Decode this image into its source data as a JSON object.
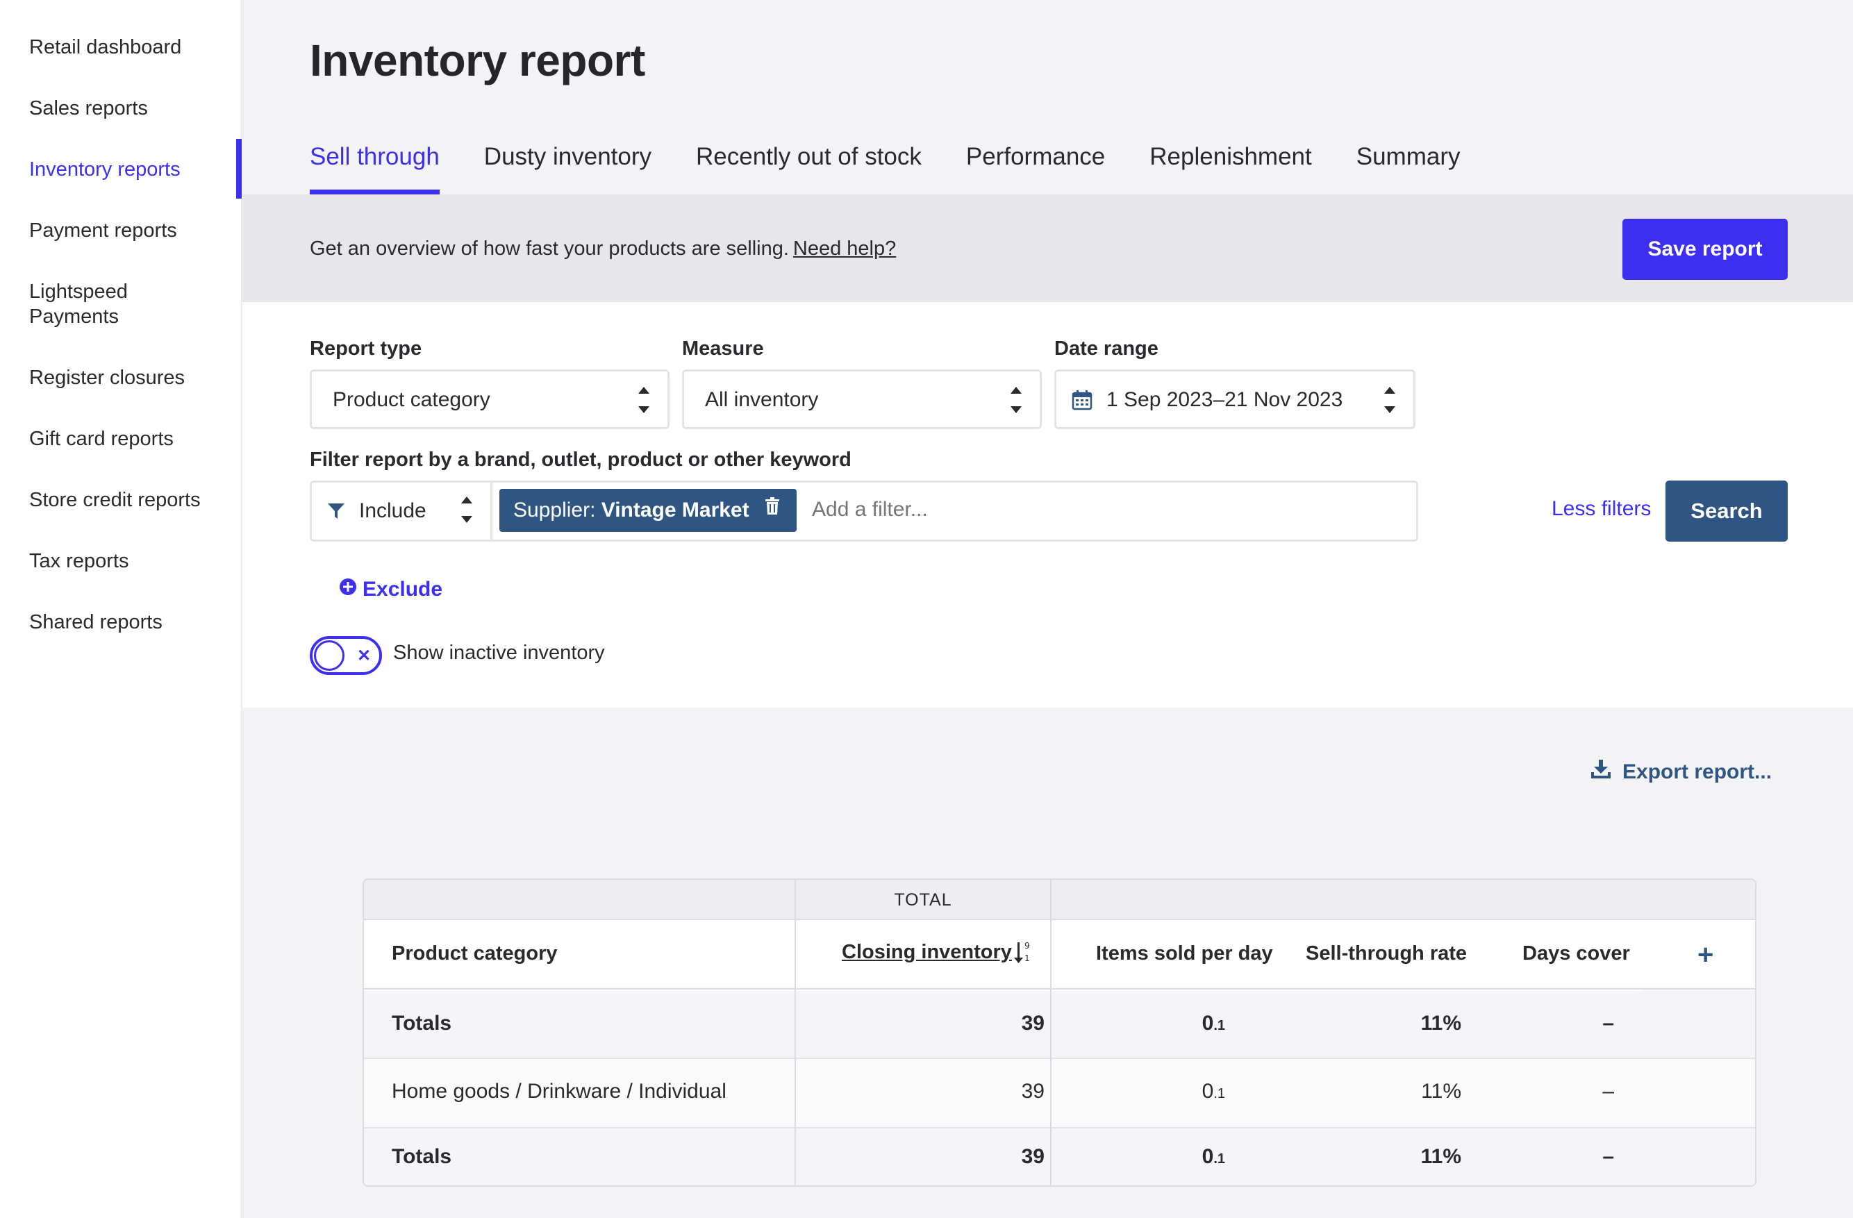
{
  "sidebar": {
    "items": [
      {
        "label": "Retail dashboard"
      },
      {
        "label": "Sales reports"
      },
      {
        "label": "Inventory reports"
      },
      {
        "label": "Payment reports"
      },
      {
        "label": "Lightspeed Payments"
      },
      {
        "label": "Register closures"
      },
      {
        "label": "Gift card reports"
      },
      {
        "label": "Store credit reports"
      },
      {
        "label": "Tax reports"
      },
      {
        "label": "Shared reports"
      }
    ],
    "active_index": 2
  },
  "header": {
    "title": "Inventory report",
    "tabs": [
      {
        "label": "Sell through"
      },
      {
        "label": "Dusty inventory"
      },
      {
        "label": "Recently out of stock"
      },
      {
        "label": "Performance"
      },
      {
        "label": "Replenishment"
      },
      {
        "label": "Summary"
      }
    ],
    "active_tab": 0
  },
  "info": {
    "text": "Get an overview of how fast your products are selling.",
    "help_link": "Need help?",
    "save_label": "Save report"
  },
  "filters": {
    "report_type_label": "Report type",
    "report_type_value": "Product category",
    "measure_label": "Measure",
    "measure_value": "All inventory",
    "date_range_label": "Date range",
    "date_range_value": "1 Sep 2023–21 Nov 2023",
    "keyword_label": "Filter report by a brand, outlet, product or other keyword",
    "include_value": "Include",
    "chip_prefix": "Supplier:",
    "chip_value": "Vintage Market",
    "add_filter_placeholder": "Add a filter...",
    "less_filters_label": "Less filters",
    "search_label": "Search",
    "exclude_label": "Exclude",
    "inactive_toggle_label": "Show inactive inventory",
    "inactive_toggle_on": false
  },
  "export": {
    "label": "Export report..."
  },
  "table": {
    "group_header": "TOTAL",
    "columns": {
      "category": "Product category",
      "closing_inventory": "Closing inventory",
      "items_sold_per_day": "Items sold per day",
      "sell_through_rate": "Sell-through rate",
      "days_cover": "Days cover"
    },
    "rows": [
      {
        "category": "Totals",
        "closing": "39",
        "per_day_int": "0",
        "per_day_dec": ".1",
        "rate": "11%",
        "cover": "–",
        "bold": true
      },
      {
        "category": "Home goods / Drinkware / Individual",
        "closing": "39",
        "per_day_int": "0",
        "per_day_dec": ".1",
        "rate": "11%",
        "cover": "–",
        "bold": false
      },
      {
        "category": "Totals",
        "closing": "39",
        "per_day_int": "0",
        "per_day_dec": ".1",
        "rate": "11%",
        "cover": "–",
        "bold": true
      }
    ]
  },
  "colors": {
    "accent": "#3d2ff0",
    "secondary": "#2f5582",
    "text": "#2a2a2e"
  }
}
